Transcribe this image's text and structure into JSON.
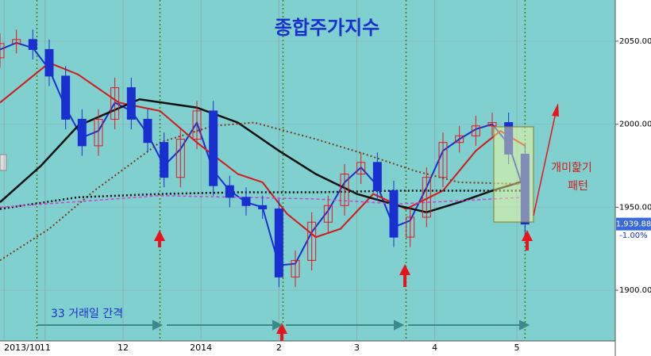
{
  "chart_data": {
    "type": "candlestick",
    "title": "종합주가지수",
    "xlim": [
      0,
      150
    ],
    "ylim": [
      1869.5,
      2074.8
    ],
    "xticks": [
      {
        "value": 1,
        "label": "2013/10"
      },
      {
        "value": 11,
        "label": "11"
      },
      {
        "value": 30,
        "label": "12"
      },
      {
        "value": 49,
        "label": "2014"
      },
      {
        "value": 68,
        "label": "2"
      },
      {
        "value": 87,
        "label": "3"
      },
      {
        "value": 106,
        "label": "4"
      },
      {
        "value": 126,
        "label": "5"
      }
    ],
    "yticks": [
      {
        "value": 1900,
        "label": "1900.00"
      },
      {
        "value": 1950,
        "label": "1950.00"
      },
      {
        "value": 2000,
        "label": "2000.00"
      },
      {
        "value": 2050,
        "label": "2050.00"
      }
    ],
    "candles": {
      "up_color": "#e8141b",
      "down_color": "#1a2fd0",
      "x": [
        0,
        4,
        8,
        12,
        16,
        20,
        24,
        28,
        32,
        36,
        40,
        44,
        48,
        52,
        56,
        60,
        64,
        68,
        72,
        76,
        80,
        84,
        88,
        92,
        96,
        100,
        104,
        108,
        112,
        116,
        120,
        124,
        128
      ],
      "open": [
        2040,
        2048.6,
        2051,
        2045,
        2029,
        2003,
        1987,
        2003,
        2022,
        2003,
        1989,
        1968,
        1991,
        2008,
        1963,
        1956,
        1951,
        1949,
        1908,
        1918,
        1941,
        1951,
        1970,
        1977,
        1960,
        1932,
        1944,
        1968,
        1989,
        1993,
        1999,
        2001,
        1982
      ],
      "high": [
        2054.6,
        2057,
        2057,
        2051,
        2035,
        2009,
        2009,
        2028,
        2028,
        2009,
        1995,
        1997,
        2014,
        2014,
        1969,
        1962,
        1957,
        1955,
        1924,
        1947,
        1957,
        1976,
        1983,
        1983,
        1966,
        1950,
        1974,
        1995,
        1999,
        2005,
        2007,
        2007,
        1988
      ],
      "low": [
        2034,
        2042.6,
        2039,
        2023,
        1997,
        1981,
        1981,
        1997,
        1997,
        1983,
        1962,
        1962,
        1985,
        1957,
        1950,
        1945,
        1943,
        1902,
        1902,
        1912,
        1935,
        1945,
        1964,
        1954,
        1926,
        1926,
        1938,
        1962,
        1983,
        1987,
        1993,
        1976,
        1933.88
      ],
      "close": [
        2048.6,
        2051,
        2045,
        2029,
        2003,
        1987,
        2003,
        2022,
        2003,
        1989,
        1968,
        1991,
        2008,
        1963,
        1956,
        1951,
        1949,
        1908,
        1918,
        1941,
        1951,
        1970,
        1977,
        1960,
        1932,
        1944,
        1968,
        1989,
        1993,
        1999,
        2001,
        1982,
        1939.88
      ]
    },
    "series": [
      {
        "color": "#1a2fd0",
        "style": "solid",
        "width": 2,
        "x": [
          0,
          4,
          8,
          12,
          16,
          20,
          24,
          28,
          32,
          36,
          40,
          44,
          48,
          52,
          56,
          60,
          64,
          68,
          72,
          76,
          80,
          84,
          88,
          92,
          96,
          100,
          104,
          108,
          112,
          116,
          120,
          124,
          128
        ],
        "values": [
          2045,
          2049,
          2046,
          2033,
          2010,
          1992,
          1996,
          2013,
          2008,
          1994,
          1975,
          1985,
          2001,
          1972,
          1960,
          1953,
          1950,
          1915,
          1916,
          1935,
          1948,
          1965,
          1974,
          1963,
          1938,
          1942,
          1962,
          1984,
          1991,
          1997,
          2000,
          1988,
          1958
        ]
      },
      {
        "color": "#d41818",
        "style": "solid",
        "width": 2,
        "x": [
          0,
          12,
          19,
          29,
          39,
          48,
          58,
          64,
          70,
          77,
          83,
          91,
          99,
          108,
          116,
          122,
          128
        ],
        "values": [
          2013,
          2037,
          2030,
          2013,
          2008,
          1989,
          1970,
          1965,
          1946,
          1932,
          1937,
          1958,
          1949,
          1960,
          1984,
          1996,
          1987
        ]
      },
      {
        "color": "#111111",
        "style": "solid",
        "width": 2.5,
        "x": [
          0,
          10,
          19,
          34,
          48,
          58,
          68,
          77,
          87,
          97,
          104,
          112,
          120,
          128
        ],
        "values": [
          1953,
          1975,
          1999,
          2015,
          2010,
          2001,
          1984,
          1970,
          1958,
          1951,
          1947,
          1953,
          1960,
          1966
        ]
      },
      {
        "color": "#7a3b1a",
        "style": "dotted",
        "width": 2,
        "x": [
          0,
          12,
          23,
          39,
          52,
          62,
          77,
          89,
          101,
          112,
          128
        ],
        "values": [
          1918,
          1937,
          1960,
          1989,
          1999,
          2001,
          1991,
          1982,
          1972,
          1965,
          1964
        ]
      },
      {
        "color": "#111111",
        "style": "dotted",
        "width": 2.5,
        "x": [
          0,
          19,
          39,
          58,
          77,
          97,
          128
        ],
        "values": [
          1949,
          1956,
          1958,
          1959,
          1959,
          1960,
          1960
        ]
      },
      {
        "color": "#d040d0",
        "style": "dashed",
        "width": 1.5,
        "x": [
          0,
          39,
          77,
          97,
          128
        ],
        "values": [
          1950,
          1957,
          1955,
          1952,
          1956
        ]
      }
    ],
    "vlines": [
      9,
      39,
      69,
      99,
      128
    ],
    "price_tag": {
      "value": 1939.88,
      "label": "1,939.88"
    },
    "change": "-1.00%",
    "interval_label": "33 거래일 간격",
    "pattern_label": [
      "개미핥기",
      "패턴"
    ]
  }
}
